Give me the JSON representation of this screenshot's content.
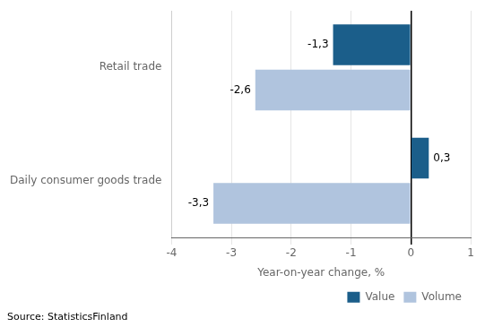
{
  "chart_data": {
    "type": "bar",
    "orientation": "horizontal",
    "categories": [
      "Daily consumer goods trade",
      "Retail trade"
    ],
    "series": [
      {
        "name": "Value",
        "color": "#1B5E8A",
        "values": [
          0.3,
          -1.3
        ],
        "value_labels": [
          "0,3",
          "-1,3"
        ]
      },
      {
        "name": "Volume",
        "color": "#B0C4DE",
        "values": [
          -3.3,
          -2.6
        ],
        "value_labels": [
          "-3,3",
          "-2,6"
        ]
      }
    ],
    "xlabel": "Year-on-year change, %",
    "xlim": [
      -4,
      1
    ],
    "xticks": [
      -4,
      -3,
      -2,
      -1,
      0,
      1
    ],
    "grid": true,
    "legend": "lower right",
    "data_labels": true,
    "annotations": [
      "Source: StatisticsFinland"
    ]
  }
}
